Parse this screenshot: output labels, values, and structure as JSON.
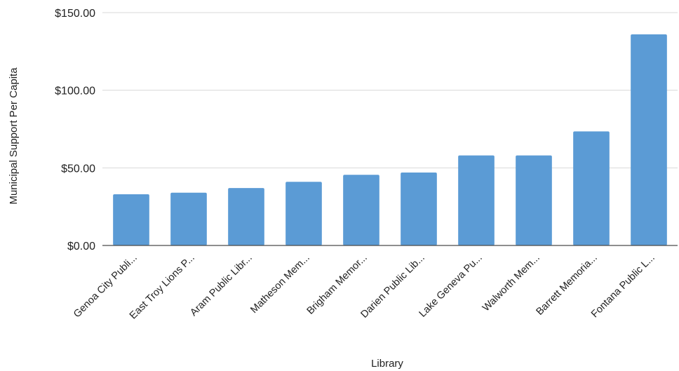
{
  "chart_data": {
    "type": "bar",
    "title": "",
    "xlabel": "Library",
    "ylabel": "Municipal Support Per Capita",
    "ylim": [
      0,
      150
    ],
    "yticks": [
      0,
      50,
      100,
      150
    ],
    "ytick_labels": [
      "$0.00",
      "$50.00",
      "$100.00",
      "$150.00"
    ],
    "grid": true,
    "legend": "none",
    "bar_color": "#5b9bd5",
    "categories": [
      "Genoa City Publi...",
      "East Troy Lions P...",
      "Aram Public Libr...",
      "Matheson Mem...",
      "Brigham Memor...",
      "Darien Public Lib...",
      "Lake Geneva Pu...",
      "Walworth Mem...",
      "Barrett Memoria...",
      "Fontana Public L..."
    ],
    "values": [
      33,
      34,
      37,
      41,
      45.5,
      47,
      58,
      58,
      73.5,
      136
    ]
  }
}
